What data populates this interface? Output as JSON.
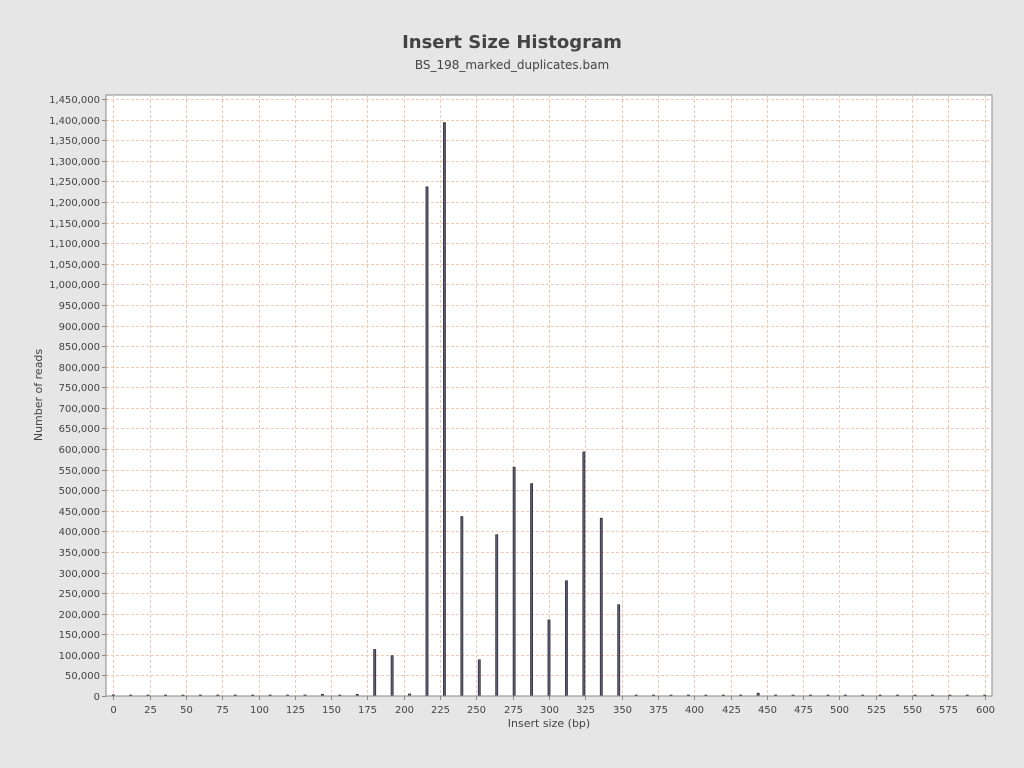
{
  "chart_data": {
    "type": "bar",
    "title": "Insert Size Histogram",
    "subtitle": "BS_198_marked_duplicates.bam",
    "xlabel": "Insert size (bp)",
    "ylabel": "Number of reads",
    "xlim": [
      -5,
      605
    ],
    "ylim": [
      0,
      1460000
    ],
    "x_ticks": [
      0,
      25,
      50,
      75,
      100,
      125,
      150,
      175,
      200,
      225,
      250,
      275,
      300,
      325,
      350,
      375,
      400,
      425,
      450,
      475,
      500,
      525,
      550,
      575,
      600
    ],
    "y_ticks": [
      0,
      50000,
      100000,
      150000,
      200000,
      250000,
      300000,
      350000,
      400000,
      450000,
      500000,
      550000,
      600000,
      650000,
      700000,
      750000,
      800000,
      850000,
      900000,
      950000,
      1000000,
      1050000,
      1100000,
      1150000,
      1200000,
      1250000,
      1300000,
      1350000,
      1400000,
      1450000
    ],
    "grid": true,
    "x": [
      0,
      12,
      24,
      36,
      48,
      60,
      72,
      84,
      96,
      108,
      120,
      132,
      144,
      156,
      168,
      180,
      192,
      204,
      216,
      228,
      240,
      252,
      264,
      276,
      288,
      300,
      312,
      324,
      336,
      348,
      360,
      372,
      384,
      396,
      408,
      420,
      432,
      444,
      456,
      468,
      480,
      492,
      504,
      516,
      528,
      540,
      552,
      564,
      576,
      588,
      600
    ],
    "values": [
      3000,
      500,
      500,
      500,
      500,
      500,
      500,
      500,
      1500,
      2500,
      1500,
      2500,
      4000,
      2000,
      4000,
      113000,
      98000,
      5000,
      1237000,
      1393000,
      436000,
      88000,
      392000,
      556000,
      516000,
      185000,
      280000,
      593000,
      432000,
      222000,
      2000,
      500,
      500,
      500,
      500,
      500,
      500,
      7000,
      500,
      500,
      500,
      500,
      500,
      500,
      500,
      500,
      500,
      500,
      500,
      500,
      500
    ]
  },
  "colors": {
    "background": "#e6e6e6",
    "plot_background": "#ffffff",
    "grid": "#f0c8b4",
    "bar_fill": "#5a5a78",
    "bar_stroke": "#222222",
    "axis": "#888888",
    "text": "#444444"
  }
}
